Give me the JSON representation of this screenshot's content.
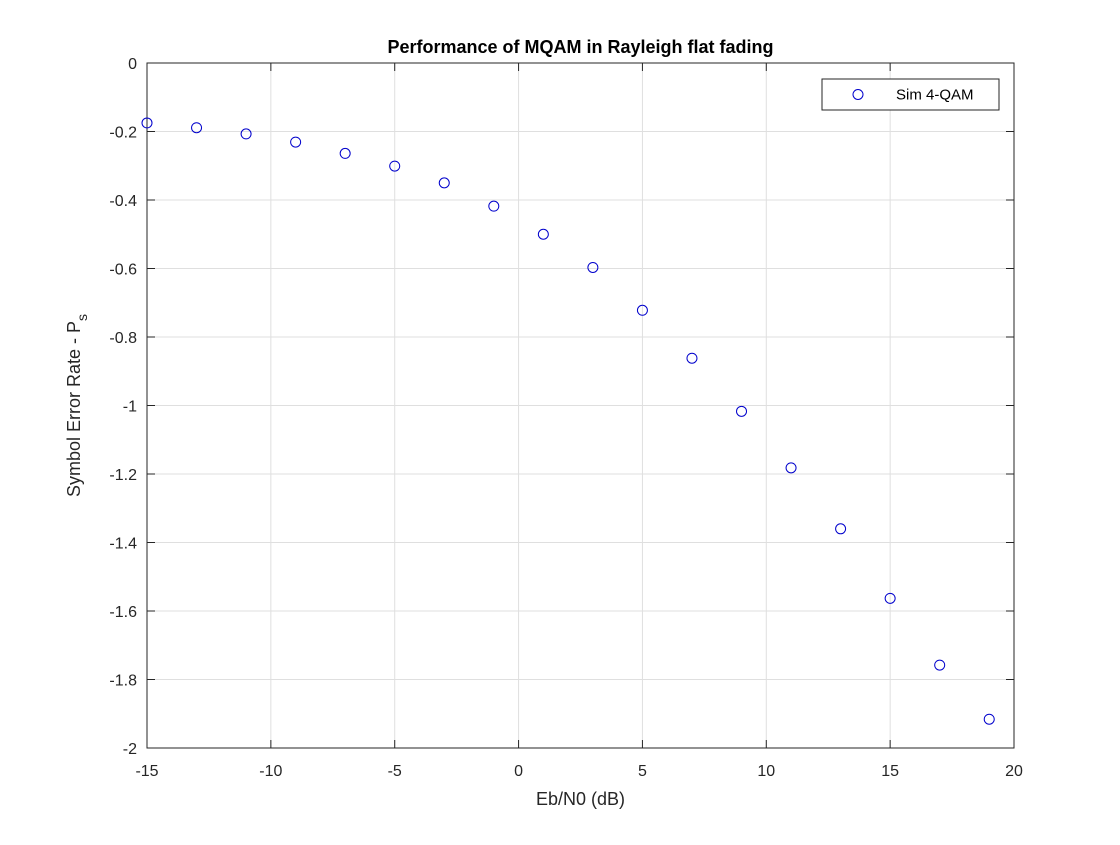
{
  "chart_data": {
    "type": "scatter",
    "title": "Performance of MQAM in Rayleigh flat fading",
    "xlabel": "Eb/N0 (dB)",
    "ylabel_main": "Symbol Error Rate - P",
    "ylabel_sub": "s",
    "xlim": [
      -15,
      20
    ],
    "ylim": [
      -2,
      0
    ],
    "xticks": [
      -15,
      -10,
      -5,
      0,
      5,
      10,
      15,
      20
    ],
    "xtick_labels": [
      "-15",
      "-10",
      "-5",
      "0",
      "5",
      "10",
      "15",
      "20"
    ],
    "yticks": [
      0,
      -0.2,
      -0.4,
      -0.6,
      -0.8,
      -1,
      -1.2,
      -1.4,
      -1.6,
      -1.8,
      -2
    ],
    "ytick_labels": [
      "0",
      "-0.2",
      "-0.4",
      "-0.6",
      "-0.8",
      "-1",
      "-1.2",
      "-1.4",
      "-1.6",
      "-1.8",
      "-2"
    ],
    "grid": true,
    "legend_position": "top-right",
    "series": [
      {
        "name": "Sim 4-QAM",
        "marker": "circle-open",
        "color": "#0000cc",
        "x": [
          -15,
          -13,
          -11,
          -9,
          -7,
          -5,
          -3,
          -1,
          1,
          3,
          5,
          7,
          9,
          11,
          13,
          15,
          17,
          19
        ],
        "y": [
          -0.175,
          -0.189,
          -0.207,
          -0.231,
          -0.264,
          -0.301,
          -0.35,
          -0.418,
          -0.5,
          -0.597,
          -0.722,
          -0.862,
          -1.017,
          -1.182,
          -1.36,
          -1.563,
          -1.758,
          -1.916
        ]
      }
    ]
  }
}
